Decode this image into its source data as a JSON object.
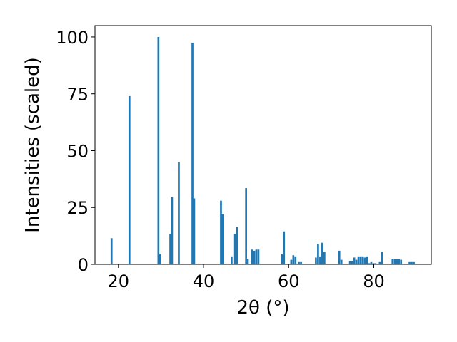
{
  "chart_data": {
    "type": "bar",
    "xlabel": "2θ (°)",
    "ylabel": "Intensities (scaled)",
    "xlim": [
      14.5,
      93.5
    ],
    "ylim": [
      0,
      105
    ],
    "xticks": [
      20,
      40,
      60,
      80
    ],
    "yticks": [
      0,
      25,
      50,
      75,
      100
    ],
    "bar_color": "#1f77b4",
    "grid": false,
    "series": [
      {
        "x": [
          18.4,
          22.6,
          29.4,
          29.8,
          32.2,
          32.6,
          34.2,
          37.4,
          37.8,
          44.1,
          44.5,
          46.6,
          47.4,
          47.9,
          50.0,
          50.4,
          51.4,
          51.9,
          52.4,
          52.9,
          58.4,
          58.9,
          60.6,
          61.1,
          61.6,
          62.4,
          62.9,
          66.4,
          66.9,
          67.4,
          67.9,
          68.4,
          71.9,
          72.4,
          74.4,
          74.9,
          75.4,
          75.9,
          76.4,
          76.9,
          77.4,
          77.9,
          78.4,
          78.9,
          79.4,
          79.9,
          80.4,
          81.4,
          81.9,
          84.4,
          84.9,
          85.4,
          85.9,
          86.4,
          88.4,
          88.9,
          89.4
        ],
        "values": [
          11.5,
          74,
          100,
          4.5,
          13.5,
          29.5,
          45,
          97.5,
          29,
          28,
          22,
          3.5,
          13.5,
          16.5,
          33.5,
          2.5,
          6.5,
          6,
          6.5,
          6.5,
          4.5,
          14.5,
          2,
          4,
          3.5,
          1,
          1,
          3,
          9,
          3.5,
          9.5,
          5.5,
          6,
          2,
          1.5,
          1.5,
          3,
          2,
          3.5,
          3.5,
          3.5,
          3,
          3.5,
          0.5,
          1,
          0.5,
          0.5,
          1,
          5.5,
          2.5,
          2.5,
          2.5,
          2.5,
          2,
          1,
          1,
          1
        ]
      }
    ]
  }
}
